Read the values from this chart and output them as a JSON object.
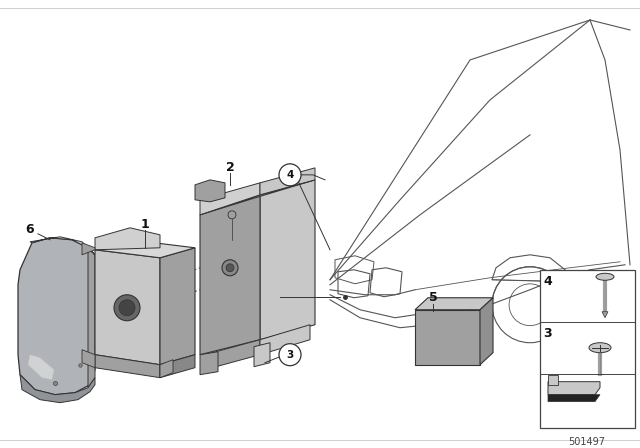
{
  "bg_color": "#ffffff",
  "part_number": "501497",
  "gray_light": "#c8c8c8",
  "gray_mid": "#a0a0a0",
  "gray_dark": "#787878",
  "gray_cover": "#b0b4b8",
  "line_color": "#333333",
  "line_thin": "#555555"
}
